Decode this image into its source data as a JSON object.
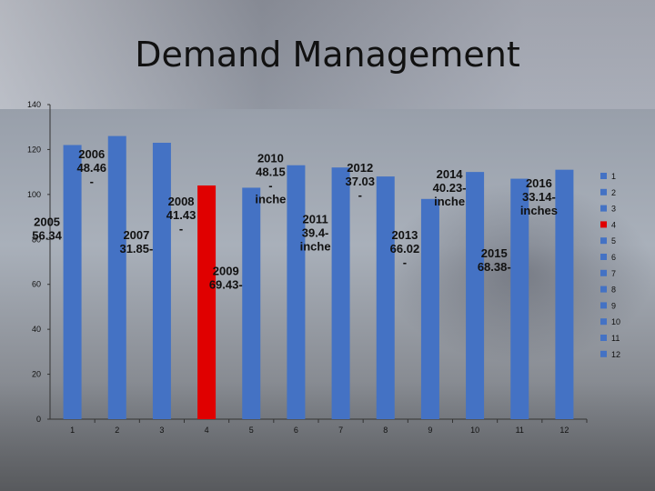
{
  "title": "Demand Management",
  "chart_data": {
    "type": "bar",
    "categories": [
      "1",
      "2",
      "3",
      "4",
      "5",
      "6",
      "7",
      "8",
      "9",
      "10",
      "11",
      "12"
    ],
    "values": [
      122,
      126,
      123,
      104,
      103,
      113,
      112,
      108,
      98,
      110,
      107,
      111
    ],
    "ylim": [
      0,
      140
    ],
    "yticks": [
      0,
      20,
      40,
      60,
      80,
      100,
      120,
      140
    ],
    "grid": false,
    "bar_color": "#4472C4",
    "highlight": {
      "category": "4",
      "color": "#E00000"
    },
    "legend": {
      "position": "right",
      "entries": [
        "1",
        "2",
        "3",
        "4",
        "5",
        "6",
        "7",
        "8",
        "9",
        "10",
        "11",
        "12"
      ]
    },
    "annotations": [
      {
        "lines": [
          "2005",
          "56.34"
        ],
        "category": "1",
        "y": 80
      },
      {
        "lines": [
          "2006",
          "48.46",
          "-"
        ],
        "category": "2",
        "y": 104
      },
      {
        "lines": [
          "2007",
          "31.85-"
        ],
        "category": "3",
        "y": 74
      },
      {
        "lines": [
          "2008",
          "41.43",
          "-"
        ],
        "category": "4",
        "y": 83
      },
      {
        "lines": [
          "2009",
          "69.43-"
        ],
        "category": "5",
        "y": 58
      },
      {
        "lines": [
          "2010",
          "48.15",
          "-",
          "inche"
        ],
        "category": "6",
        "y": 96
      },
      {
        "lines": [
          "2011",
          "39.4-",
          "inche"
        ],
        "category": "7",
        "y": 75
      },
      {
        "lines": [
          "2012",
          "37.03",
          "-"
        ],
        "category": "8",
        "y": 98
      },
      {
        "lines": [
          "2013",
          "66.02",
          "-"
        ],
        "category": "9",
        "y": 68
      },
      {
        "lines": [
          "2014",
          "40.23-",
          "inche"
        ],
        "category": "10",
        "y": 95
      },
      {
        "lines": [
          "2015",
          "68.38-"
        ],
        "category": "11",
        "y": 66
      },
      {
        "lines": [
          "2016",
          "33.14-",
          "inches"
        ],
        "category": "12",
        "y": 91
      }
    ]
  }
}
